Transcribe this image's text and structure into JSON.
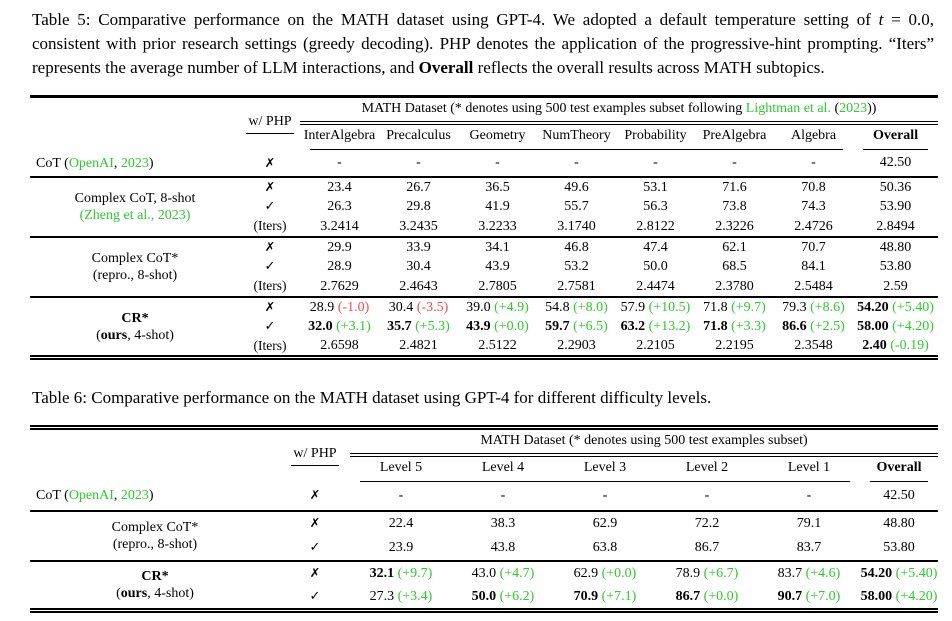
{
  "colors": {
    "green": "#2DCC2D",
    "red": "#FA4B4B",
    "text": "#000000",
    "background": "#ffffff"
  },
  "symbols": {
    "cross": "✗",
    "check": "✓",
    "iters_label": "(Iters)"
  },
  "captions": {
    "table5": [
      {
        "t": "Table 5: Comparative performance on the MATH dataset using GPT-4. We adopted a default temperature setting of "
      },
      {
        "t": "t",
        "i": true
      },
      {
        "t": " = 0.0, consistent with prior research settings (greedy decoding). PHP denotes the application of the progressive-hint prompting. “Iters” represents the average number of LLM interactions, and "
      },
      {
        "t": "Overall",
        "b": true
      },
      {
        "t": " reflects the overall results across MATH subtopics."
      }
    ],
    "table6": [
      {
        "t": "Table 6: Comparative performance on the MATH dataset using GPT-4 for different difficulty levels."
      }
    ]
  },
  "tables": [
    {
      "id": "table5",
      "php_header": "w/ PHP",
      "dataset_header": [
        {
          "t": "MATH Dataset (* denotes using 500 test examples subset following "
        },
        {
          "t": "Lightman et al.",
          "c": "green"
        },
        {
          "t": " ("
        },
        {
          "t": "2023",
          "c": "green"
        },
        {
          "t": "))"
        }
      ],
      "columns": [
        "InterAlgebra",
        "Precalculus",
        "Geometry",
        "NumTheory",
        "Probability",
        "PreAlgebra",
        "Algebra"
      ],
      "overall_header": "Overall",
      "groups": [
        {
          "align": "left",
          "label": [
            [
              {
                "t": "CoT ("
              },
              {
                "t": "OpenAI",
                "c": "green"
              },
              {
                "t": ", "
              },
              {
                "t": "2023",
                "c": "green"
              },
              {
                "t": ")"
              }
            ]
          ],
          "rows": [
            {
              "php": "cross",
              "cells": [
                {
                  "v": "-"
                },
                {
                  "v": "-"
                },
                {
                  "v": "-"
                },
                {
                  "v": "-"
                },
                {
                  "v": "-"
                },
                {
                  "v": "-"
                },
                {
                  "v": "-"
                },
                {
                  "v": "42.50"
                }
              ]
            }
          ]
        },
        {
          "label": [
            [
              {
                "t": "Complex CoT, 8-shot"
              }
            ],
            [
              {
                "t": "(Zheng et al., 2023)",
                "c": "green"
              }
            ]
          ],
          "rows": [
            {
              "php": "cross",
              "cells": [
                {
                  "v": "23.4"
                },
                {
                  "v": "26.7"
                },
                {
                  "v": "36.5"
                },
                {
                  "v": "49.6"
                },
                {
                  "v": "53.1"
                },
                {
                  "v": "71.6"
                },
                {
                  "v": "70.8"
                },
                {
                  "v": "50.36"
                }
              ]
            },
            {
              "php": "check",
              "cells": [
                {
                  "v": "26.3"
                },
                {
                  "v": "29.8"
                },
                {
                  "v": "41.9"
                },
                {
                  "v": "55.7"
                },
                {
                  "v": "56.3"
                },
                {
                  "v": "73.8"
                },
                {
                  "v": "74.3"
                },
                {
                  "v": "53.90"
                }
              ]
            },
            {
              "php": "iters",
              "cells": [
                {
                  "v": "3.2414"
                },
                {
                  "v": "3.2435"
                },
                {
                  "v": "3.2233"
                },
                {
                  "v": "3.1740"
                },
                {
                  "v": "2.8122"
                },
                {
                  "v": "2.3226"
                },
                {
                  "v": "2.4726"
                },
                {
                  "v": "2.8494"
                }
              ]
            }
          ]
        },
        {
          "label": [
            [
              {
                "t": "Complex CoT*"
              }
            ],
            [
              {
                "t": "(repro., 8-shot)"
              }
            ]
          ],
          "rows": [
            {
              "php": "cross",
              "cells": [
                {
                  "v": "29.9"
                },
                {
                  "v": "33.9"
                },
                {
                  "v": "34.1"
                },
                {
                  "v": "46.8"
                },
                {
                  "v": "47.4"
                },
                {
                  "v": "62.1"
                },
                {
                  "v": "70.7"
                },
                {
                  "v": "48.80"
                }
              ]
            },
            {
              "php": "check",
              "cells": [
                {
                  "v": "28.9"
                },
                {
                  "v": "30.4"
                },
                {
                  "v": "43.9"
                },
                {
                  "v": "53.2"
                },
                {
                  "v": "50.0"
                },
                {
                  "v": "68.5"
                },
                {
                  "v": "84.1"
                },
                {
                  "v": "53.80"
                }
              ]
            },
            {
              "php": "iters",
              "cells": [
                {
                  "v": "2.7629"
                },
                {
                  "v": "2.4643"
                },
                {
                  "v": "2.7805"
                },
                {
                  "v": "2.7581"
                },
                {
                  "v": "2.4474"
                },
                {
                  "v": "2.3780"
                },
                {
                  "v": "2.5484"
                },
                {
                  "v": "2.59"
                }
              ]
            }
          ]
        },
        {
          "label": [
            [
              {
                "t": "CR*",
                "b": true
              }
            ],
            [
              {
                "t": "("
              },
              {
                "t": "ours",
                "b": true
              },
              {
                "t": ", 4-shot)"
              }
            ]
          ],
          "rows": [
            {
              "php": "cross",
              "cells": [
                {
                  "v": "28.9",
                  "d": "-1.0",
                  "dc": "red"
                },
                {
                  "v": "30.4",
                  "d": "-3.5",
                  "dc": "red"
                },
                {
                  "v": "39.0",
                  "d": "+4.9",
                  "dc": "green"
                },
                {
                  "v": "54.8",
                  "d": "+8.0",
                  "dc": "green"
                },
                {
                  "v": "57.9",
                  "d": "+10.5",
                  "dc": "green"
                },
                {
                  "v": "71.8",
                  "d": "+9.7",
                  "dc": "green"
                },
                {
                  "v": "79.3",
                  "d": "+8.6",
                  "dc": "green"
                },
                {
                  "v": "54.20",
                  "b": true,
                  "d": "+5.40",
                  "dc": "green"
                }
              ]
            },
            {
              "php": "check",
              "cells": [
                {
                  "v": "32.0",
                  "b": true,
                  "d": "+3.1",
                  "dc": "green"
                },
                {
                  "v": "35.7",
                  "b": true,
                  "d": "+5.3",
                  "dc": "green"
                },
                {
                  "v": "43.9",
                  "b": true,
                  "d": "+0.0",
                  "dc": "green"
                },
                {
                  "v": "59.7",
                  "b": true,
                  "d": "+6.5",
                  "dc": "green"
                },
                {
                  "v": "63.2",
                  "b": true,
                  "d": "+13.2",
                  "dc": "green"
                },
                {
                  "v": "71.8",
                  "b": true,
                  "d": "+3.3",
                  "dc": "green"
                },
                {
                  "v": "86.6",
                  "b": true,
                  "d": "+2.5",
                  "dc": "green"
                },
                {
                  "v": "58.00",
                  "b": true,
                  "d": "+4.20",
                  "dc": "green"
                }
              ]
            },
            {
              "php": "iters",
              "cells": [
                {
                  "v": "2.6598"
                },
                {
                  "v": "2.4821"
                },
                {
                  "v": "2.5122"
                },
                {
                  "v": "2.2903"
                },
                {
                  "v": "2.2105"
                },
                {
                  "v": "2.2195"
                },
                {
                  "v": "2.3548"
                },
                {
                  "v": "2.40",
                  "b": true,
                  "d": "-0.19",
                  "dc": "green"
                }
              ]
            }
          ]
        }
      ]
    },
    {
      "id": "table6",
      "php_header": "w/ PHP",
      "dataset_header": [
        {
          "t": "MATH Dataset (* denotes using 500 test examples subset)"
        }
      ],
      "columns": [
        "Level 5",
        "Level 4",
        "Level 3",
        "Level 2",
        "Level 1"
      ],
      "overall_header": "Overall",
      "groups": [
        {
          "align": "left",
          "label": [
            [
              {
                "t": "CoT ("
              },
              {
                "t": "OpenAI",
                "c": "green"
              },
              {
                "t": ", "
              },
              {
                "t": "2023",
                "c": "green"
              },
              {
                "t": ")"
              }
            ]
          ],
          "rows": [
            {
              "php": "cross",
              "cells": [
                {
                  "v": "-"
                },
                {
                  "v": "-"
                },
                {
                  "v": "-"
                },
                {
                  "v": "-"
                },
                {
                  "v": "-"
                },
                {
                  "v": "42.50"
                }
              ]
            }
          ]
        },
        {
          "label": [
            [
              {
                "t": "Complex CoT*"
              }
            ],
            [
              {
                "t": "(repro., 8-shot)"
              }
            ]
          ],
          "rows": [
            {
              "php": "cross",
              "cells": [
                {
                  "v": "22.4"
                },
                {
                  "v": "38.3"
                },
                {
                  "v": "62.9"
                },
                {
                  "v": "72.2"
                },
                {
                  "v": "79.1"
                },
                {
                  "v": "48.80"
                }
              ]
            },
            {
              "php": "check",
              "cells": [
                {
                  "v": "23.9"
                },
                {
                  "v": "43.8"
                },
                {
                  "v": "63.8"
                },
                {
                  "v": "86.7"
                },
                {
                  "v": "83.7"
                },
                {
                  "v": "53.80"
                }
              ]
            }
          ]
        },
        {
          "label": [
            [
              {
                "t": "CR*",
                "b": true
              }
            ],
            [
              {
                "t": "("
              },
              {
                "t": "ours",
                "b": true
              },
              {
                "t": ", 4-shot)"
              }
            ]
          ],
          "rows": [
            {
              "php": "cross",
              "cells": [
                {
                  "v": "32.1",
                  "b": true,
                  "d": "+9.7",
                  "dc": "green"
                },
                {
                  "v": "43.0",
                  "d": "+4.7",
                  "dc": "green"
                },
                {
                  "v": "62.9",
                  "d": "+0.0",
                  "dc": "green"
                },
                {
                  "v": "78.9",
                  "d": "+6.7",
                  "dc": "green"
                },
                {
                  "v": "83.7",
                  "d": "+4.6",
                  "dc": "green"
                },
                {
                  "v": "54.20",
                  "b": true,
                  "d": "+5.40",
                  "dc": "green"
                }
              ]
            },
            {
              "php": "check",
              "cells": [
                {
                  "v": "27.3",
                  "d": "+3.4",
                  "dc": "green"
                },
                {
                  "v": "50.0",
                  "b": true,
                  "d": "+6.2",
                  "dc": "green"
                },
                {
                  "v": "70.9",
                  "b": true,
                  "d": "+7.1",
                  "dc": "green"
                },
                {
                  "v": "86.7",
                  "b": true,
                  "d": "+0.0",
                  "dc": "green"
                },
                {
                  "v": "90.7",
                  "b": true,
                  "d": "+7.0",
                  "dc": "green"
                },
                {
                  "v": "58.00",
                  "b": true,
                  "d": "+4.20",
                  "dc": "green"
                }
              ]
            }
          ]
        }
      ]
    }
  ]
}
